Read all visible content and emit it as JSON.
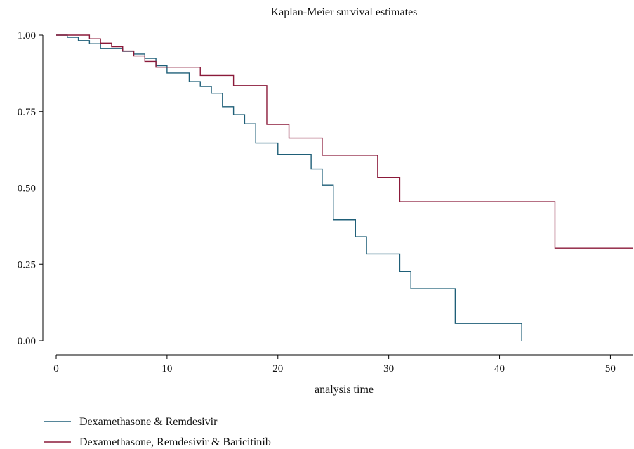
{
  "chart_data": {
    "type": "line",
    "title": "Kaplan-Meier survival estimates",
    "xlabel": "analysis time",
    "ylabel": "",
    "xlim": [
      0,
      52
    ],
    "ylim": [
      0,
      1
    ],
    "x_ticks": [
      0,
      10,
      20,
      30,
      40,
      50
    ],
    "y_ticks": [
      0,
      0.25,
      0.5,
      0.75,
      1
    ],
    "x_tick_labels": [
      "0",
      "10",
      "20",
      "30",
      "40",
      "50"
    ],
    "y_tick_labels": [
      "0.00",
      "0.25",
      "0.50",
      "0.75",
      "1.00"
    ],
    "grid": false,
    "legend_position": "bottom-left",
    "series": [
      {
        "name": "Dexamethasone & Remdesivir",
        "color": "#1f5f78",
        "step": true,
        "x": [
          0,
          1,
          2,
          3,
          4,
          6,
          7,
          8,
          9,
          10,
          12,
          13,
          14,
          15,
          16,
          17,
          18,
          20,
          23,
          24,
          25,
          27,
          28,
          31,
          32,
          36,
          42,
          42
        ],
        "y": [
          1.0,
          0.993,
          0.982,
          0.972,
          0.956,
          0.947,
          0.938,
          0.924,
          0.9,
          0.876,
          0.848,
          0.832,
          0.81,
          0.766,
          0.74,
          0.71,
          0.647,
          0.61,
          0.562,
          0.51,
          0.396,
          0.34,
          0.284,
          0.227,
          0.17,
          0.057,
          0.057,
          0.0
        ]
      },
      {
        "name": "Dexamethasone, Remdesivir & Baricitinib",
        "color": "#8b1a3a",
        "step": true,
        "x": [
          0,
          3,
          4,
          5,
          6,
          7,
          8,
          9,
          13,
          16,
          19,
          21,
          24,
          29,
          31,
          45,
          52
        ],
        "y": [
          1.0,
          0.988,
          0.974,
          0.962,
          0.948,
          0.932,
          0.914,
          0.895,
          0.868,
          0.835,
          0.708,
          0.663,
          0.607,
          0.534,
          0.455,
          0.303,
          0.303
        ]
      }
    ]
  }
}
